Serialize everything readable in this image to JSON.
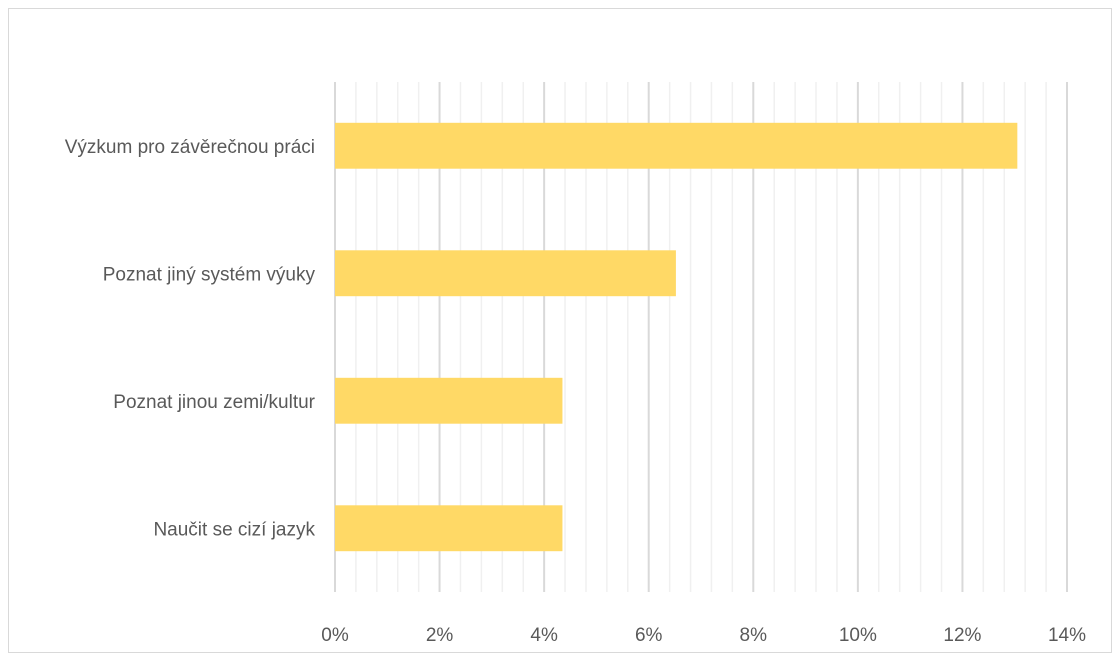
{
  "chart_data": {
    "type": "bar",
    "orientation": "horizontal",
    "title": "",
    "xlabel": "",
    "ylabel": "",
    "categories": [
      "Výzkum pro závěrečnou práci",
      "Poznat jiný systém výuky",
      "Poznat jinou zemi/kultur",
      "Naučit se cizí jazyk"
    ],
    "values": [
      13.05,
      6.52,
      4.35,
      4.35
    ],
    "xlim": [
      0,
      14
    ],
    "major_ticks": [
      0,
      2,
      4,
      6,
      8,
      10,
      12,
      14
    ],
    "tick_labels": [
      "0%",
      "2%",
      "4%",
      "6%",
      "8%",
      "10%",
      "12%",
      "14%"
    ],
    "minor_step": 0.4,
    "grid": true,
    "legend": "none",
    "bar_color": "#FFD966",
    "major_grid_color": "#D9D9D9",
    "minor_grid_color": "#F0F0F0"
  }
}
